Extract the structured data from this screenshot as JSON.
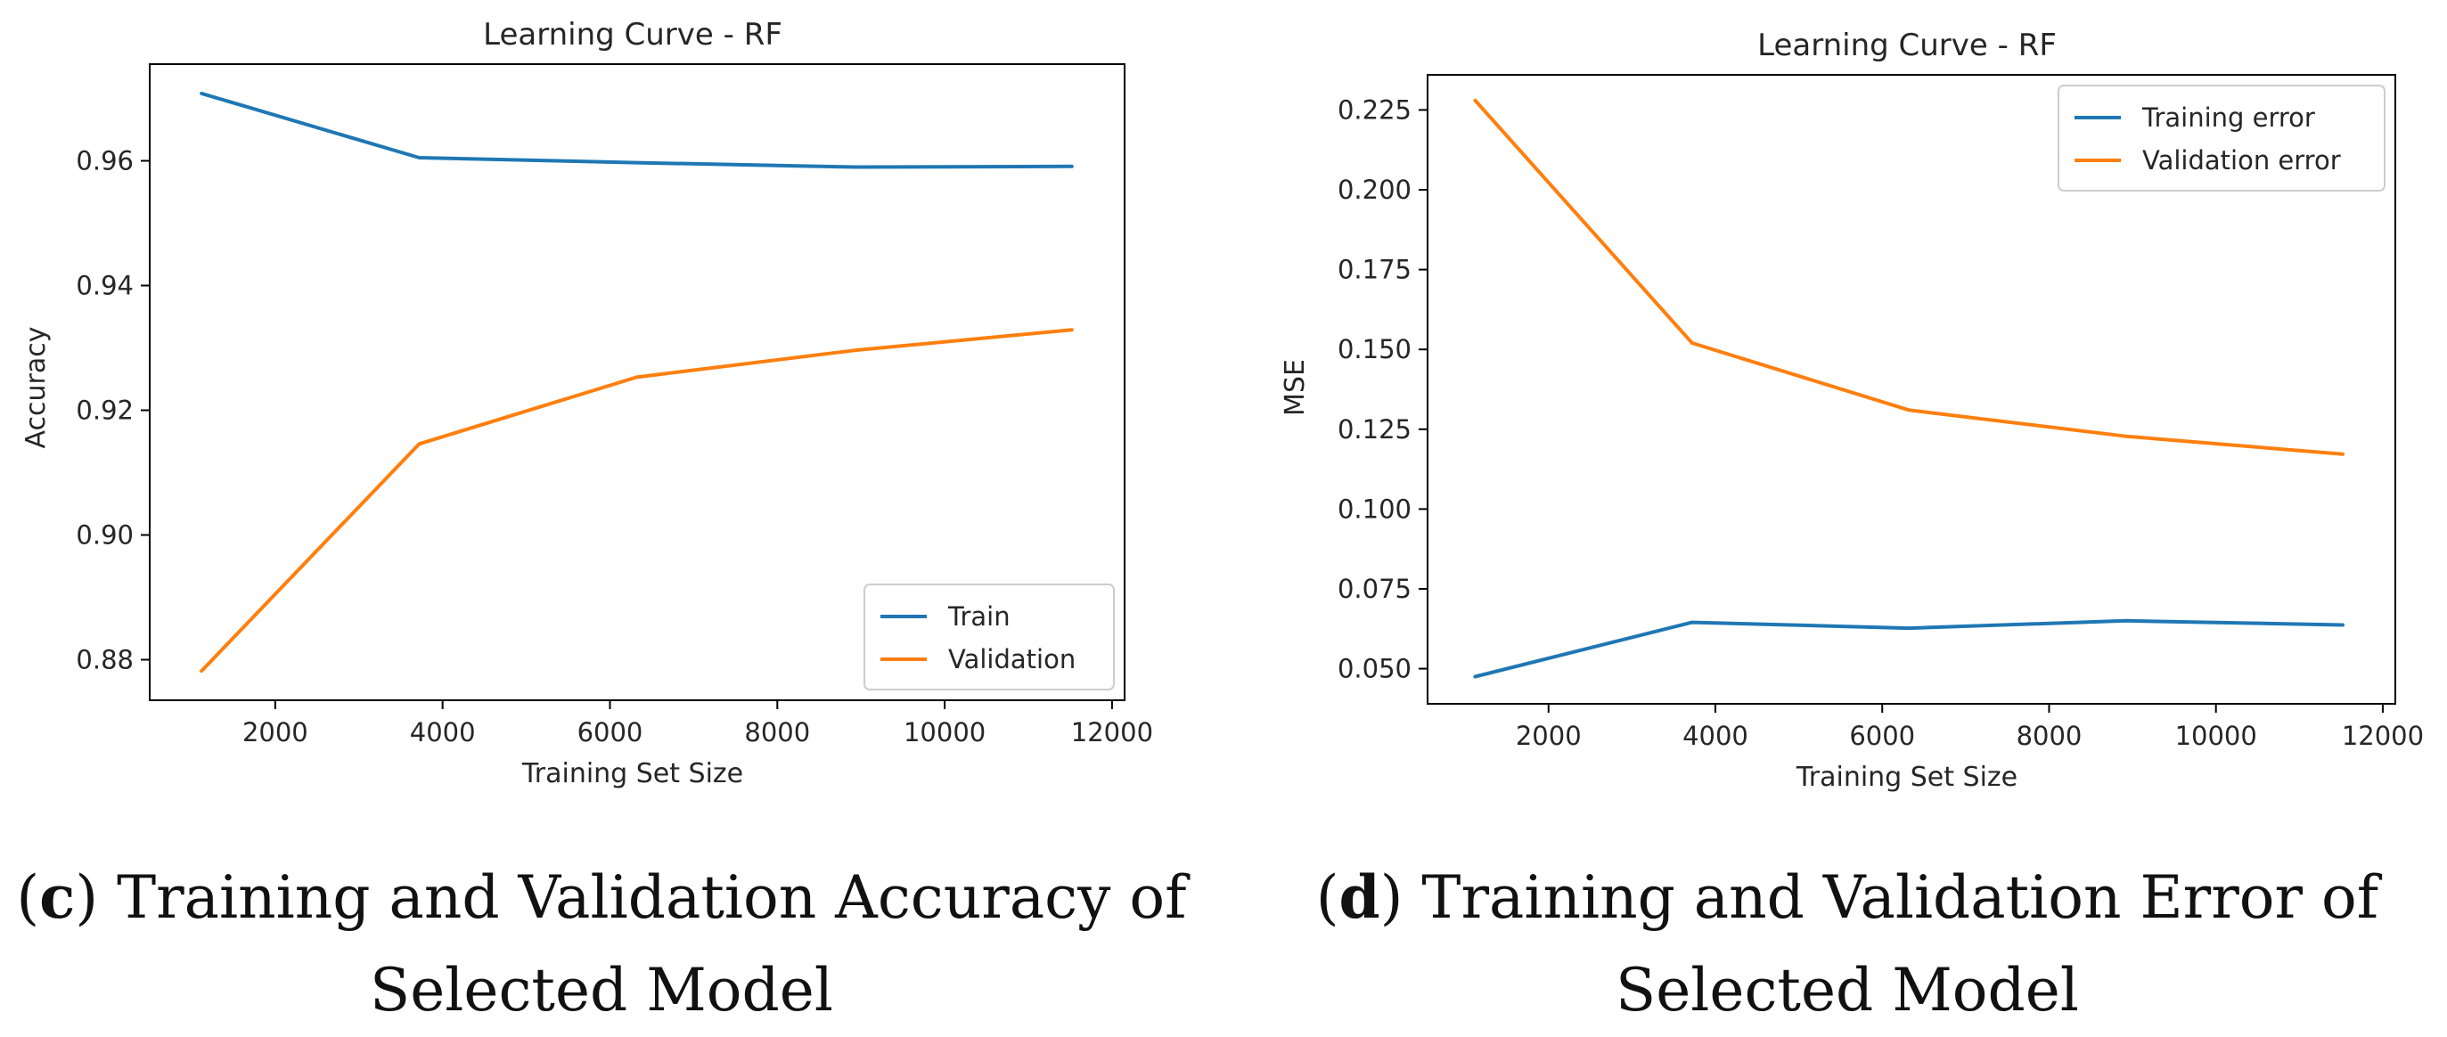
{
  "chart_data": [
    {
      "type": "line",
      "title": "Learning Curve - RF",
      "xlabel": "Training Set Size",
      "ylabel": "Accuracy",
      "xlim": [
        500,
        12150
      ],
      "ylim": [
        0.8735,
        0.9755
      ],
      "xticks": [
        2000,
        4000,
        6000,
        8000,
        10000,
        12000
      ],
      "xtick_labels": [
        "2000",
        "4000",
        "6000",
        "8000",
        "10000",
        "12000"
      ],
      "yticks": [
        0.88,
        0.9,
        0.92,
        0.94,
        0.96
      ],
      "ytick_labels": [
        "0.88",
        "0.90",
        "0.92",
        "0.94",
        "0.96"
      ],
      "grid": false,
      "legend_position": "lower-right",
      "x": [
        1120,
        3720,
        6320,
        8920,
        11520
      ],
      "series": [
        {
          "name": "Train",
          "color": "#1f77b4",
          "values": [
            0.9708,
            0.9605,
            0.9597,
            0.959,
            0.9591
          ]
        },
        {
          "name": "Validation",
          "color": "#ff7f0e",
          "values": [
            0.8782,
            0.9146,
            0.9253,
            0.9296,
            0.9329
          ]
        }
      ]
    },
    {
      "type": "line",
      "title": "Learning Curve - RF",
      "xlabel": "Training Set Size",
      "ylabel": "MSE",
      "xlim": [
        550,
        12150
      ],
      "ylim": [
        0.039,
        0.236
      ],
      "xticks": [
        2000,
        4000,
        6000,
        8000,
        10000,
        12000
      ],
      "xtick_labels": [
        "2000",
        "4000",
        "6000",
        "8000",
        "10000",
        "12000"
      ],
      "yticks": [
        0.05,
        0.075,
        0.1,
        0.125,
        0.15,
        0.175,
        0.2,
        0.225
      ],
      "ytick_labels": [
        "0.050",
        "0.075",
        "0.100",
        "0.125",
        "0.150",
        "0.175",
        "0.200",
        "0.225"
      ],
      "grid": false,
      "legend_position": "upper-right",
      "x": [
        1120,
        3720,
        6320,
        8920,
        11520
      ],
      "series": [
        {
          "name": "Training error",
          "color": "#1f77b4",
          "values": [
            0.0475,
            0.0645,
            0.0627,
            0.065,
            0.0637
          ]
        },
        {
          "name": "Validation error",
          "color": "#ff7f0e",
          "values": [
            0.228,
            0.152,
            0.131,
            0.1228,
            0.1172
          ]
        }
      ]
    }
  ],
  "captions": [
    {
      "letter": "c",
      "line1": "Training and Validation Accuracy of",
      "line2": "Selected Model"
    },
    {
      "letter": "d",
      "line1": "Training and Validation Error of",
      "line2": "Selected Model"
    }
  ]
}
